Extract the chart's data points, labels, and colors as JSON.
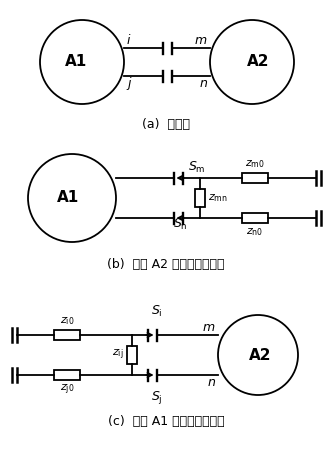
{
  "background_color": "#ffffff",
  "caption_a": "(a)  原系统",
  "caption_b": "(b)  区域 A2 诺顿等值后网络",
  "caption_c": "(c)  区域 A1 诺顿等值后网络",
  "label_A1": "A1",
  "label_A2": "A2",
  "label_i": "i",
  "label_j": "j",
  "label_m": "m",
  "label_n": "n"
}
